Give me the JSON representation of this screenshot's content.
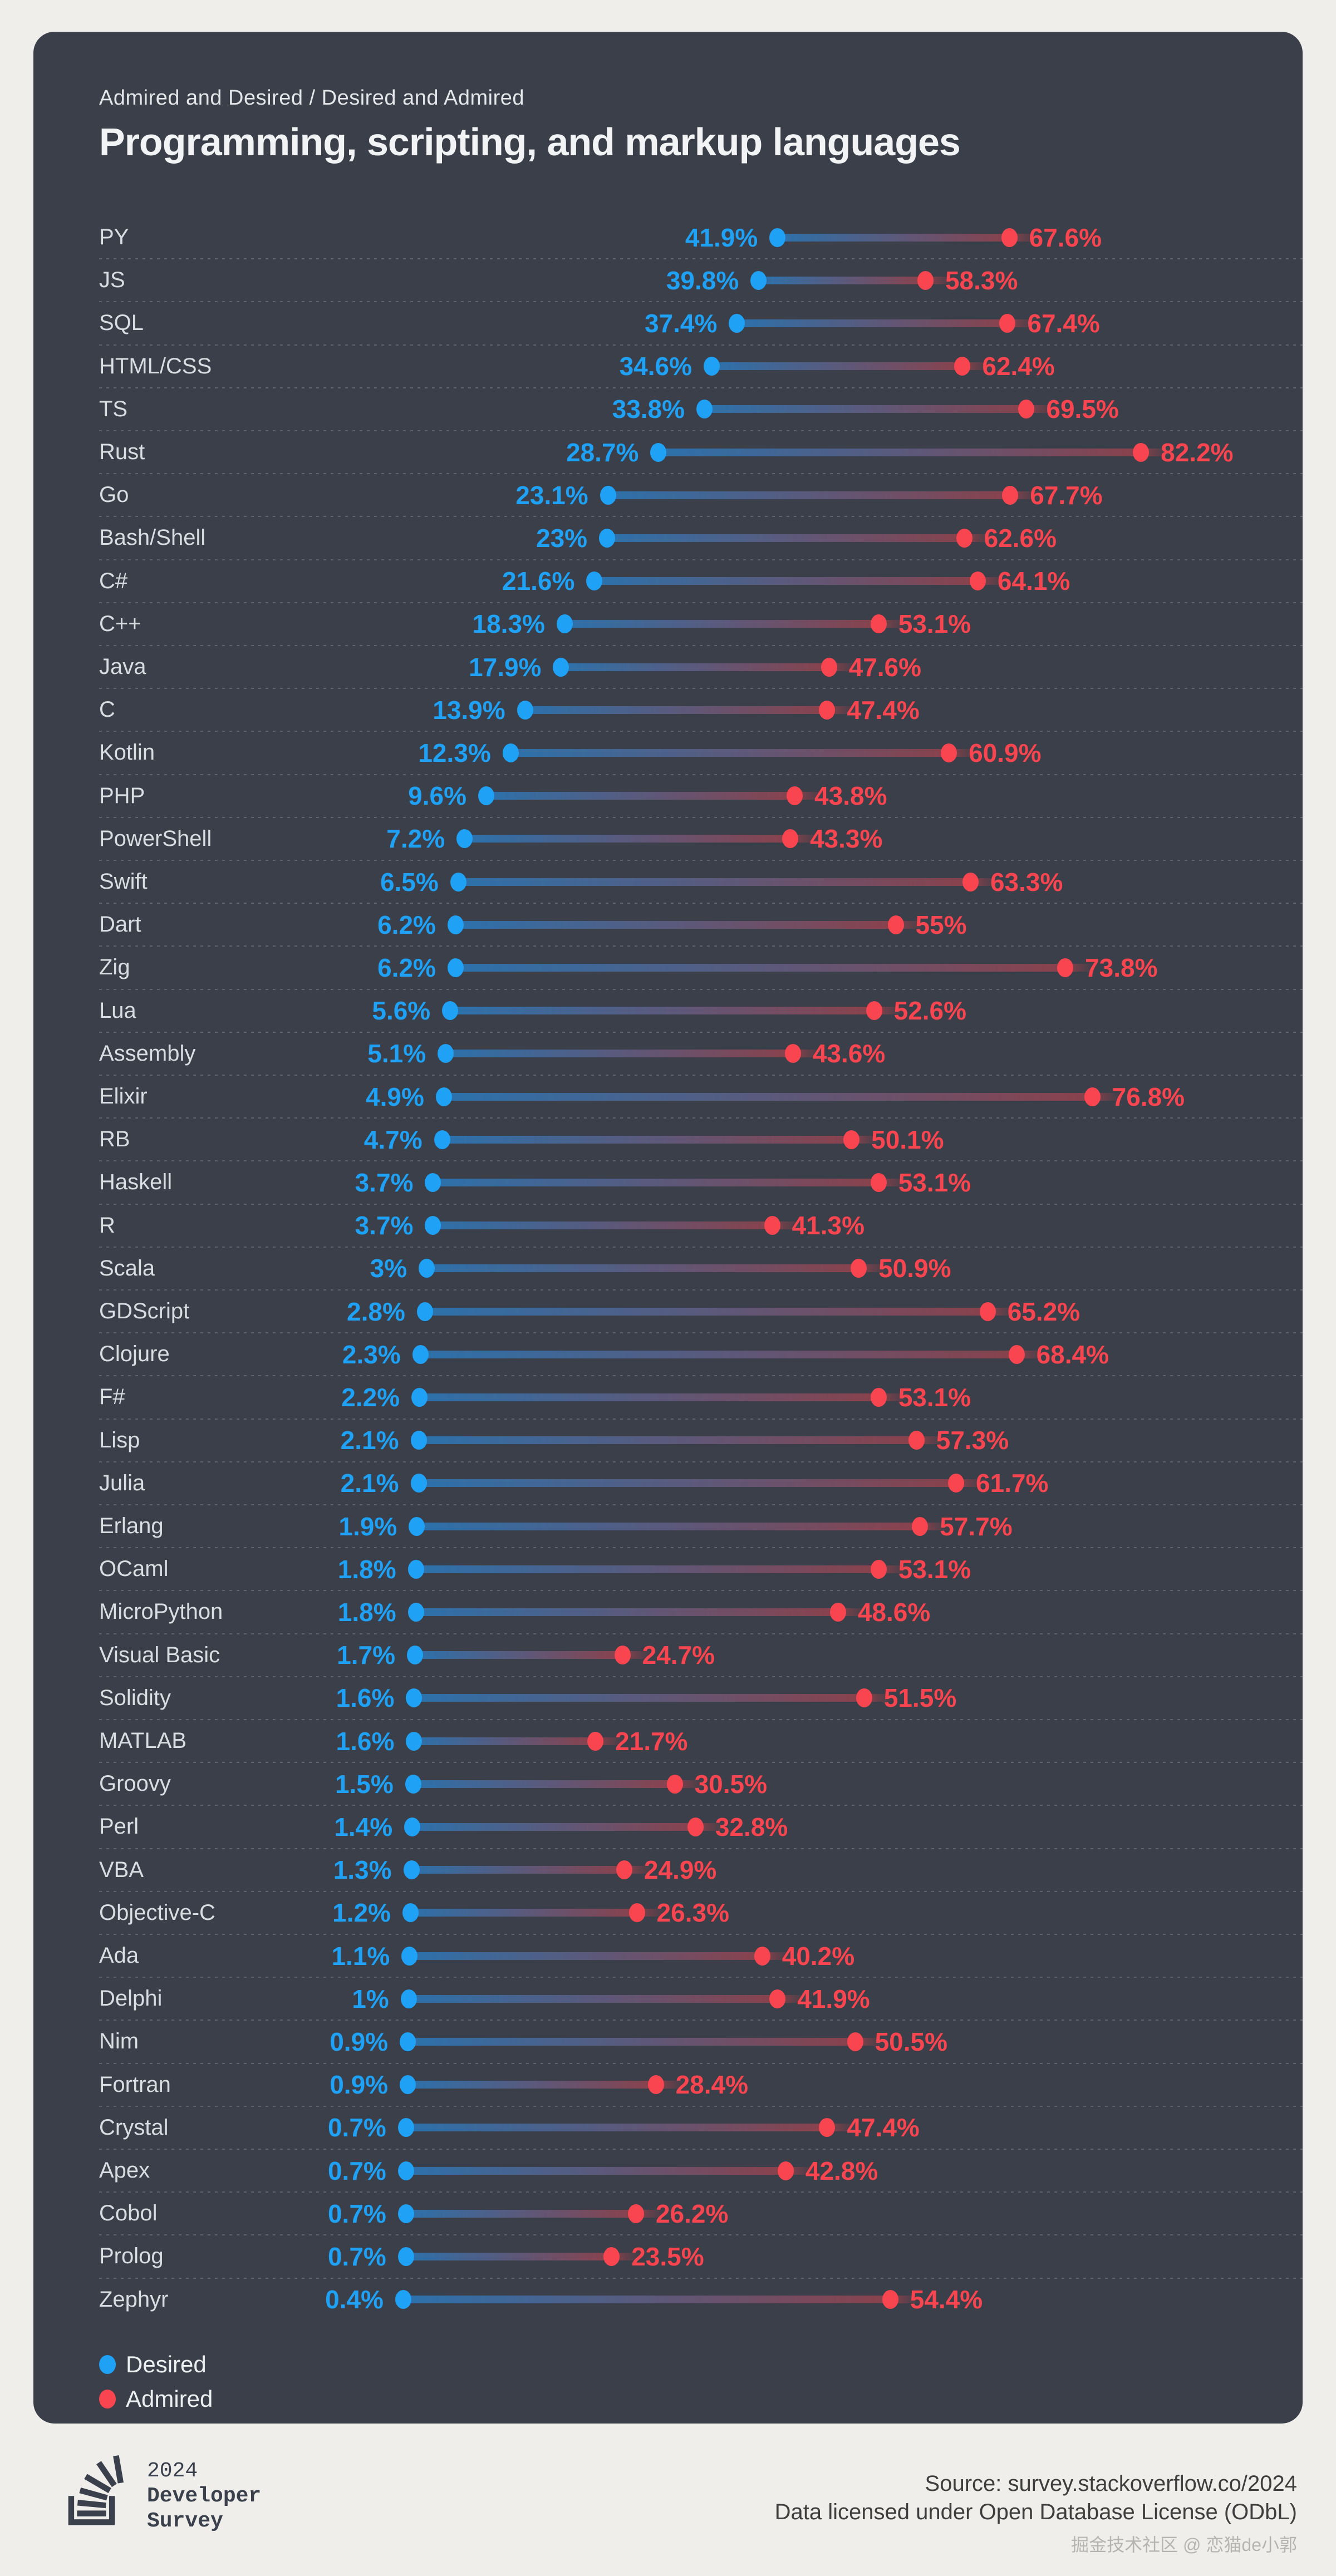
{
  "header": {
    "subtitle": "Admired and Desired / Desired and Admired",
    "title": "Programming, scripting, and markup languages"
  },
  "chart_data": {
    "type": "dumbbell",
    "title": "Programming, scripting, and markup languages",
    "subtitle": "Admired and Desired / Desired and Admired",
    "unit": "%",
    "xlim": [
      0,
      100
    ],
    "grid": false,
    "legend_position": "bottom-left",
    "categories": [
      "PY",
      "JS",
      "SQL",
      "HTML/CSS",
      "TS",
      "Rust",
      "Go",
      "Bash/Shell",
      "C#",
      "C++",
      "Java",
      "C",
      "Kotlin",
      "PHP",
      "PowerShell",
      "Swift",
      "Dart",
      "Zig",
      "Lua",
      "Assembly",
      "Elixir",
      "RB",
      "Haskell",
      "R",
      "Scala",
      "GDScript",
      "Clojure",
      "F#",
      "Lisp",
      "Julia",
      "Erlang",
      "OCaml",
      "MicroPython",
      "Visual Basic",
      "Solidity",
      "MATLAB",
      "Groovy",
      "Perl",
      "VBA",
      "Objective-C",
      "Ada",
      "Delphi",
      "Nim",
      "Fortran",
      "Crystal",
      "Apex",
      "Cobol",
      "Prolog",
      "Zephyr"
    ],
    "series": [
      {
        "name": "Desired",
        "color": "#1fa1f5",
        "values": [
          41.9,
          39.8,
          37.4,
          34.6,
          33.8,
          28.7,
          23.1,
          23,
          21.6,
          18.3,
          17.9,
          13.9,
          12.3,
          9.6,
          7.2,
          6.5,
          6.2,
          6.2,
          5.6,
          5.1,
          4.9,
          4.7,
          3.7,
          3.7,
          3,
          2.8,
          2.3,
          2.2,
          2.1,
          2.1,
          1.9,
          1.8,
          1.8,
          1.7,
          1.6,
          1.6,
          1.5,
          1.4,
          1.3,
          1.2,
          1.1,
          1,
          0.9,
          0.9,
          0.7,
          0.7,
          0.7,
          0.7,
          0.4
        ]
      },
      {
        "name": "Admired",
        "color": "#f8454f",
        "values": [
          67.6,
          58.3,
          67.4,
          62.4,
          69.5,
          82.2,
          67.7,
          62.6,
          64.1,
          53.1,
          47.6,
          47.4,
          60.9,
          43.8,
          43.3,
          63.3,
          55,
          73.8,
          52.6,
          43.6,
          76.8,
          50.1,
          53.1,
          41.3,
          50.9,
          65.2,
          68.4,
          53.1,
          57.3,
          61.7,
          57.7,
          53.1,
          48.6,
          24.7,
          51.5,
          21.7,
          30.5,
          32.8,
          24.9,
          26.3,
          40.2,
          41.9,
          50.5,
          28.4,
          47.4,
          42.8,
          26.2,
          23.5,
          54.4
        ]
      }
    ]
  },
  "colors": {
    "page_bg": "#efeeeb",
    "panel_bg": "#3a3f49",
    "desired": "#1fa1f5",
    "admired": "#f8454f",
    "row_label": "#d9dce1",
    "title_text": "#f2f3f5"
  },
  "footer": {
    "brand_year": "2024",
    "brand_line2": "Developer",
    "brand_line3": "Survey",
    "source": "Source: survey.stackoverflow.co/2024",
    "license": "Data licensed under Open Database License (ODbL)",
    "watermark": "掘金技术社区 @ 恋猫de小郭"
  }
}
